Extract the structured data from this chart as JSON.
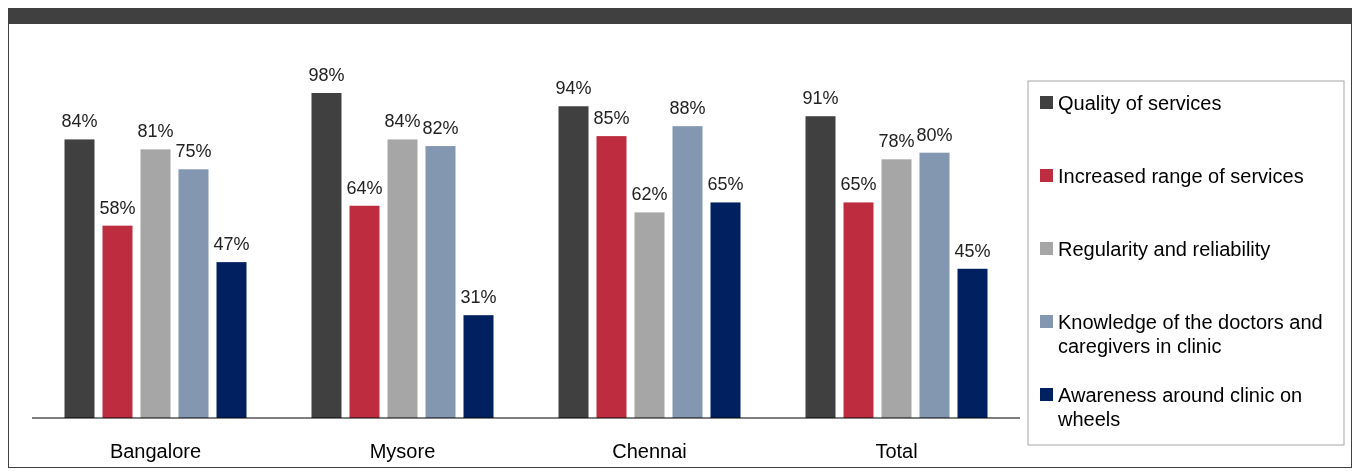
{
  "chart_data": {
    "type": "bar",
    "categories": [
      "Bangalore",
      "Mysore",
      "Chennai",
      "Total"
    ],
    "legend": "right",
    "series": [
      {
        "name": "Quality of services",
        "color": "#404040",
        "values": [
          84,
          98,
          94,
          91
        ],
        "value_labels": [
          "84%",
          "98%",
          "94%",
          "91%"
        ]
      },
      {
        "name": "Increased range of services",
        "color": "#be2d3f",
        "values": [
          58,
          64,
          85,
          65
        ],
        "value_labels": [
          "58%",
          "64%",
          "85%",
          "65%"
        ]
      },
      {
        "name": "Regularity and reliability",
        "color": "#a6a6a6",
        "values": [
          81,
          84,
          62,
          78
        ],
        "value_labels": [
          "81%",
          "84%",
          "62%",
          "78%"
        ]
      },
      {
        "name": "Knowledge of the doctors and caregivers in clinic",
        "color": "#8497b0",
        "values": [
          75,
          82,
          88,
          80
        ],
        "value_labels": [
          "75%",
          "82%",
          "88%",
          "80%"
        ]
      },
      {
        "name": "Awareness around clinic on wheels",
        "color": "#002060",
        "values": [
          47,
          31,
          65,
          45
        ],
        "value_labels": [
          "47%",
          "31%",
          "65%",
          "45%"
        ]
      }
    ]
  }
}
